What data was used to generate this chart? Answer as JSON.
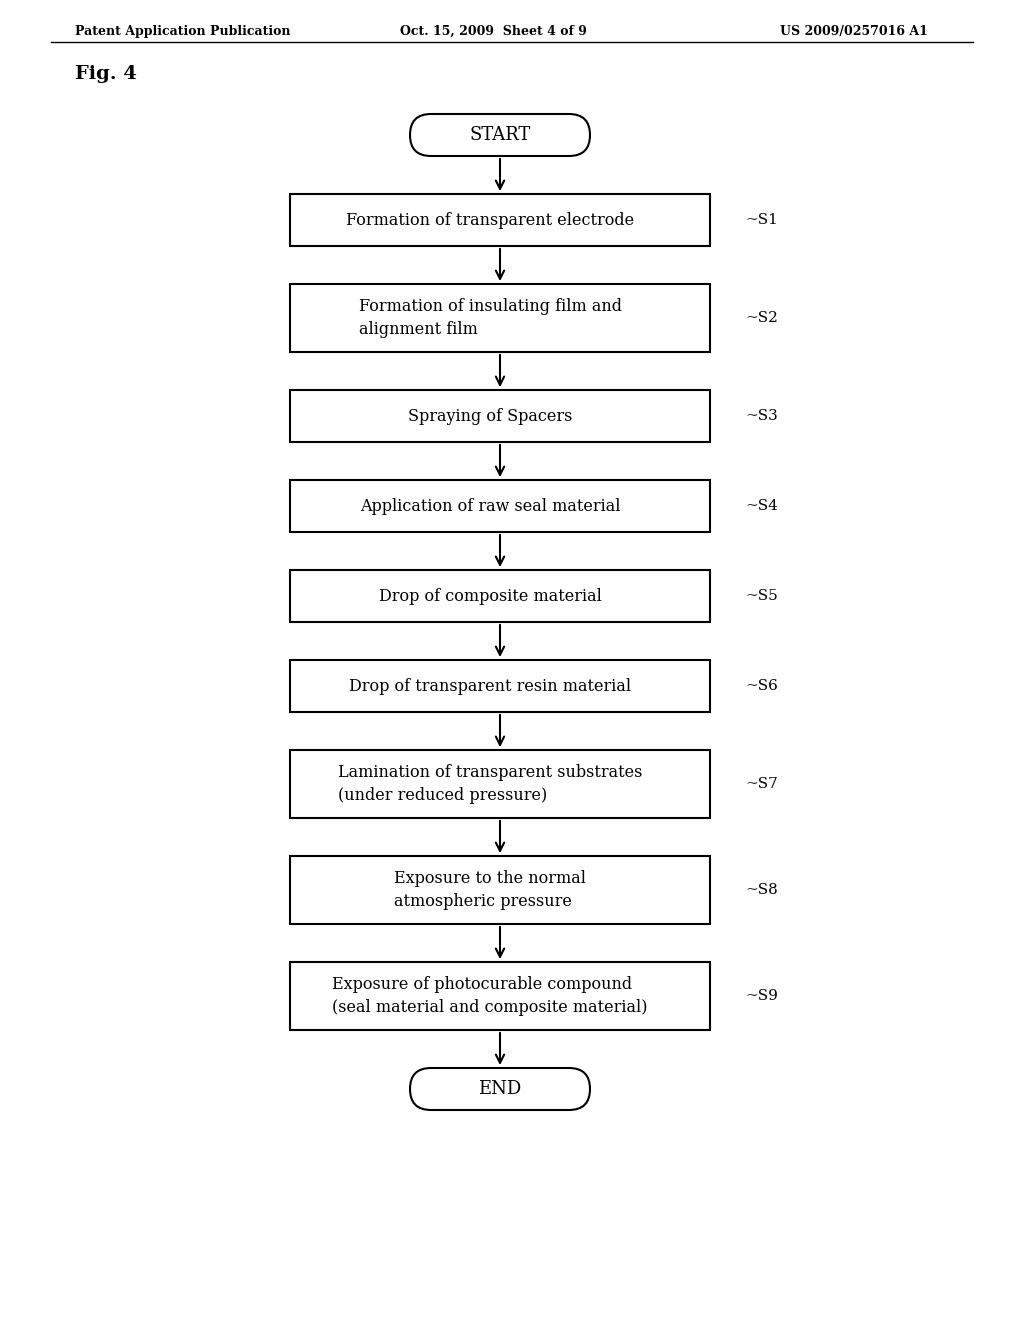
{
  "header_left": "Patent Application Publication",
  "header_mid": "Oct. 15, 2009  Sheet 4 of 9",
  "header_right": "US 2009/0257016 A1",
  "fig_label": "Fig. 4",
  "start_label": "START",
  "end_label": "END",
  "steps": [
    {
      "label": "Formation of transparent electrode",
      "step": "S1",
      "multiline": false
    },
    {
      "label": "Formation of insulating film and\nalignment film",
      "step": "S2",
      "multiline": true
    },
    {
      "label": "Spraying of Spacers",
      "step": "S3",
      "multiline": false
    },
    {
      "label": "Application of raw seal material",
      "step": "S4",
      "multiline": false
    },
    {
      "label": "Drop of composite material",
      "step": "S5",
      "multiline": false
    },
    {
      "label": "Drop of transparent resin material",
      "step": "S6",
      "multiline": false
    },
    {
      "label": "Lamination of transparent substrates\n(under reduced pressure)",
      "step": "S7",
      "multiline": true
    },
    {
      "label": "Exposure to the normal\natmospheric pressure",
      "step": "S8",
      "multiline": true
    },
    {
      "label": "Exposure of photocurable compound\n(seal material and composite material)",
      "step": "S9",
      "multiline": true
    }
  ],
  "bg_color": "#ffffff",
  "box_color": "#ffffff",
  "box_edge_color": "#000000",
  "text_color": "#000000",
  "arrow_color": "#000000"
}
